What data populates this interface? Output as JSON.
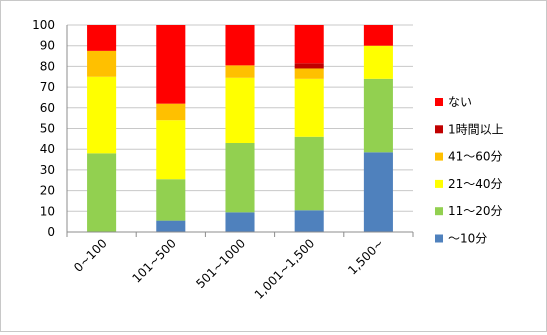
{
  "chart_data": {
    "type": "bar",
    "stacked": true,
    "categories": [
      "0~100",
      "101~500",
      "501~1000",
      "1,001~1,500",
      "1,500~"
    ],
    "ylim": [
      0,
      100
    ],
    "yticks": [
      0,
      10,
      20,
      30,
      40,
      50,
      60,
      70,
      80,
      90,
      100
    ],
    "grid": true,
    "legend_position": "right",
    "series": [
      {
        "name": "～10分",
        "color": "#4f81bd",
        "values": [
          0,
          5.5,
          9.5,
          10.5,
          38.5
        ]
      },
      {
        "name": "11～20分",
        "color": "#92d050",
        "values": [
          38,
          20,
          33.5,
          35.5,
          35.5
        ]
      },
      {
        "name": "21～40分",
        "color": "#ffff00",
        "values": [
          37,
          28.5,
          31.5,
          28,
          16
        ]
      },
      {
        "name": "41～60分",
        "color": "#ffc000",
        "values": [
          12.5,
          8,
          6,
          5,
          0
        ]
      },
      {
        "name": "1時間以上",
        "color": "#c00000",
        "values": [
          0,
          0,
          0,
          2.5,
          0
        ]
      },
      {
        "name": "ない",
        "color": "#ff0000",
        "values": [
          12.5,
          38,
          19.5,
          18.5,
          10
        ]
      }
    ]
  }
}
